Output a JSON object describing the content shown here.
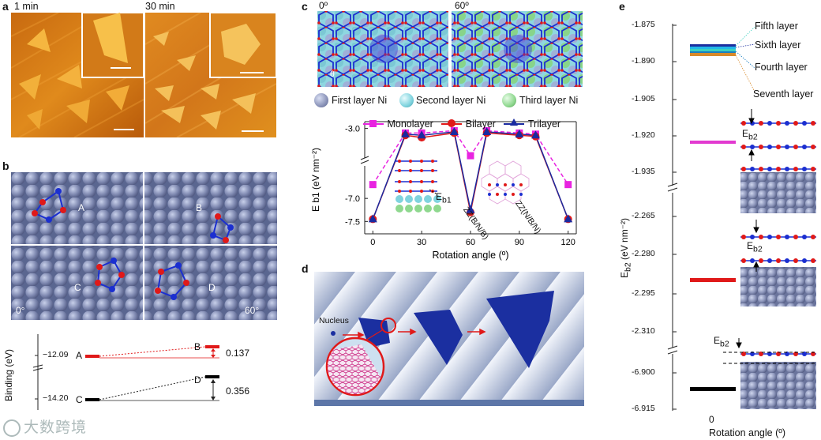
{
  "panels": {
    "a": {
      "label": "a",
      "left_title": "1 min",
      "right_title": "30 min"
    },
    "b": {
      "label": "b",
      "sub_labels": [
        "A",
        "B",
        "C",
        "D"
      ],
      "angle_left": "0°",
      "angle_right": "60°",
      "energy_plot": {
        "ylabel": "Binding (eV)",
        "ticks": [
          "−12.09",
          "−14.20"
        ],
        "levels": [
          "A",
          "B",
          "C",
          "D"
        ],
        "diff_AB": "0.137",
        "diff_CD": "0.356"
      }
    },
    "c": {
      "label": "c",
      "angle_left": "0º",
      "angle_right": "60º",
      "angle_arc": "θ",
      "legend_atoms": [
        "First layer Ni",
        "Second layer Ni",
        "Third layer Ni"
      ],
      "atom_colors": {
        "first": "#8a93b8",
        "second": "#7fd3de",
        "third": "#8fd88f"
      },
      "eb1_label": "E",
      "eb1_sub": "b1",
      "zz_labels": [
        "ZZ(B/N/B)",
        "ZZ(N/B/N)"
      ]
    },
    "d": {
      "label": "d",
      "nucleus": "Nucleus"
    },
    "e": {
      "label": "e",
      "ylabel": "E",
      "ylabel_sub": "b2",
      "ylabel_unit": "(eV nm⁻²)",
      "xlabel": "Rotation angle (º)",
      "xtick": "0",
      "ticks_top": [
        "-1.875",
        "-1.890",
        "-1.905",
        "-1.920",
        "-1.935"
      ],
      "ticks_mid": [
        "-2.265",
        "-2.280",
        "-2.295",
        "-2.310"
      ],
      "ticks_bot": [
        "-6.900",
        "-6.915"
      ],
      "layer_labels": [
        "Fifth layer",
        "Sixth layer",
        "Fourth layer",
        "Seventh layer"
      ],
      "eb2_label": "E",
      "eb2_sub": "b2",
      "bar_colors": [
        "#1b2fa0",
        "#22b8e8",
        "#3dd1c0",
        "#1a7fc0",
        "#d88a2a",
        "#e23ad0",
        "#e01919",
        "#000000"
      ]
    }
  },
  "chart_data": {
    "type": "line",
    "ylabel": "E b1 (eV nm⁻²)",
    "xlabel": "Rotation angle (º)",
    "x": [
      0,
      20,
      30,
      50,
      60,
      70,
      90,
      100,
      120
    ],
    "xticks": [
      0,
      30,
      60,
      90,
      120
    ],
    "yticks": [
      "-3.0",
      "-7.0",
      "-7.5"
    ],
    "series": [
      {
        "name": "Monolayer",
        "color": "#e823e0",
        "marker": "square",
        "values": [
          -6.7,
          -3.2,
          -3.2,
          -3.1,
          -4.2,
          -3.1,
          -3.2,
          -3.25,
          -6.7
        ]
      },
      {
        "name": "Bilayer",
        "color": "#e01919",
        "marker": "circle",
        "values": [
          -7.45,
          -3.3,
          -3.4,
          -3.2,
          -7.3,
          -3.2,
          -3.3,
          -3.35,
          -7.45
        ]
      },
      {
        "name": "Trilayer",
        "color": "#1a2aa0",
        "marker": "triangle",
        "values": [
          -7.45,
          -3.25,
          -3.3,
          -3.15,
          -7.25,
          -3.15,
          -3.25,
          -3.3,
          -7.45
        ]
      }
    ]
  },
  "watermark": "大数跨境"
}
